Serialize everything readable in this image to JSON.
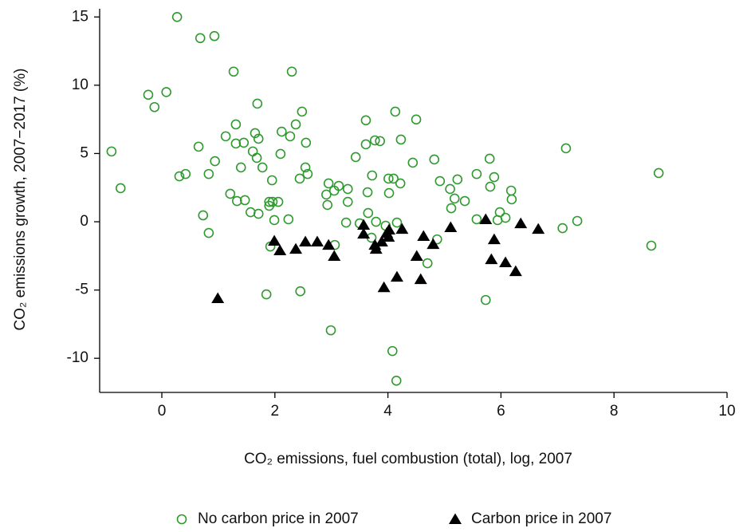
{
  "chart_data": {
    "type": "scatter",
    "x_label": "CO₂ emissions, fuel combustion (total), log, 2007",
    "y_label": "CO₂ emissions growth, 2007−2017 (%)",
    "xlim": [
      -1.1,
      10
    ],
    "xticks": [
      0,
      2,
      4,
      6,
      8,
      10
    ],
    "ylim": [
      -12.5,
      15.6
    ],
    "yticks": [
      -10,
      -5,
      0,
      5,
      10,
      15
    ],
    "grid": false,
    "legend": "bottom",
    "series": [
      {
        "name": "No carbon price in 2007",
        "color": "#2e9a2e",
        "marker": "circle",
        "x": [
          -0.89,
          -0.73,
          -0.24,
          -0.13,
          0.08,
          0.27,
          0.31,
          0.42,
          0.65,
          0.68,
          0.73,
          0.83,
          0.83,
          0.93,
          0.94,
          1.13,
          1.21,
          1.27,
          1.31,
          1.33,
          1.31,
          1.4,
          1.45,
          1.47,
          1.57,
          1.61,
          1.65,
          1.68,
          1.69,
          1.71,
          1.71,
          1.78,
          1.85,
          1.9,
          1.9,
          1.92,
          1.95,
          1.96,
          1.99,
          2.06,
          2.1,
          2.12,
          2.24,
          2.27,
          2.3,
          2.37,
          2.44,
          2.45,
          2.48,
          2.54,
          2.55,
          2.58,
          2.91,
          2.93,
          2.95,
          2.99,
          3.05,
          3.06,
          3.13,
          3.26,
          3.29,
          3.29,
          3.43,
          3.5,
          3.61,
          3.61,
          3.64,
          3.65,
          3.71,
          3.72,
          3.77,
          3.79,
          3.86,
          3.96,
          4.01,
          4.02,
          4.08,
          4.1,
          4.13,
          4.15,
          4.16,
          4.22,
          4.23,
          4.44,
          4.5,
          4.7,
          4.82,
          4.87,
          4.92,
          5.1,
          5.12,
          5.18,
          5.23,
          5.36,
          5.57,
          5.57,
          5.73,
          5.8,
          5.81,
          5.88,
          5.94,
          5.98,
          6.08,
          6.18,
          6.19,
          7.09,
          7.15,
          7.35,
          8.66,
          8.79
        ],
        "values": [
          5.15,
          2.46,
          9.3,
          8.4,
          9.5,
          15.0,
          3.33,
          3.5,
          5.5,
          13.45,
          0.47,
          -0.82,
          3.5,
          13.6,
          4.44,
          6.26,
          2.05,
          11.0,
          7.13,
          1.52,
          5.73,
          3.98,
          5.79,
          1.58,
          0.7,
          5.15,
          6.49,
          4.68,
          8.65,
          6.08,
          0.58,
          3.98,
          -5.32,
          1.17,
          1.46,
          -1.81,
          3.04,
          1.46,
          0.12,
          1.46,
          4.97,
          6.6,
          0.18,
          6.26,
          11.0,
          7.13,
          3.16,
          -5.09,
          8.07,
          3.98,
          5.79,
          3.5,
          1.99,
          1.23,
          2.81,
          -7.95,
          2.28,
          -1.7,
          2.63,
          -0.06,
          2.4,
          1.46,
          4.74,
          -0.12,
          7.43,
          5.67,
          2.16,
          0.64,
          -1.17,
          3.39,
          5.96,
          0,
          5.91,
          -0.29,
          3.16,
          2.1,
          -9.47,
          3.16,
          8.07,
          -11.64,
          -0.06,
          2.81,
          6.02,
          4.33,
          7.49,
          -3.04,
          4.56,
          -1.29,
          2.98,
          2.4,
          0.99,
          1.7,
          3.1,
          1.52,
          3.5,
          0.18,
          -5.73,
          4.62,
          2.57,
          3.27,
          0.12,
          0.7,
          0.29,
          2.28,
          1.64,
          -0.47,
          5.38,
          0.06,
          -1.75,
          3.57
        ]
      },
      {
        "name": "Carbon price in 2007",
        "color": "#000000",
        "marker": "triangle",
        "x": [
          0.99,
          1.99,
          2.09,
          2.37,
          2.54,
          2.75,
          2.95,
          3.05,
          3.57,
          3.57,
          3.77,
          3.79,
          3.89,
          3.93,
          3.98,
          4.01,
          4.02,
          4.16,
          4.25,
          4.51,
          4.58,
          4.63,
          4.8,
          5.11,
          5.73,
          5.83,
          5.88,
          6.08,
          6.26,
          6.35,
          6.66
        ],
        "values": [
          -5.61,
          -1.4,
          -2.1,
          -1.99,
          -1.46,
          -1.46,
          -1.7,
          -2.51,
          -0.23,
          -0.88,
          -1.7,
          -1.99,
          -1.46,
          -4.8,
          -0.82,
          -1.11,
          -0.58,
          -4.04,
          -0.53,
          -2.51,
          -4.21,
          -1.05,
          -1.64,
          -0.41,
          0.18,
          -2.75,
          -1.29,
          -2.98,
          -3.63,
          -0.12,
          -0.53
        ]
      }
    ]
  }
}
